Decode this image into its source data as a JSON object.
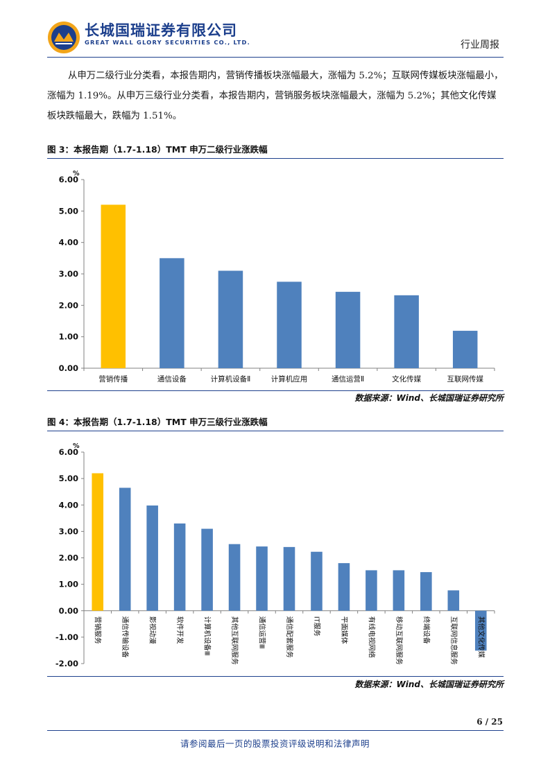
{
  "header": {
    "company_cn": "长城国瑞证券有限公司",
    "company_en": "GREAT WALL GLORY SECURITIES CO., LTD.",
    "report_type": "行业周报"
  },
  "intro_paragraph": "从申万二级行业分类看，本报告期内，营销传播板块涨幅最大，涨幅为 5.2%；互联网传媒板块涨幅最小，涨幅为 1.19%。从申万三级行业分类看，本报告期内，营销服务板块涨幅最大，涨幅为 5.2%；其他文化传媒板块跌幅最大，跌幅为 1.51%。",
  "figures": [
    {
      "title": "图 3：本报告期（1.7-1.18）TMT 申万二级行业涨跌幅",
      "source": "数据来源：Wind、长城国瑞证券研究所",
      "chart_data": {
        "type": "bar",
        "ylabel": "%",
        "ylim": [
          0,
          6
        ],
        "ytick_labels": [
          "0.00",
          "1.00",
          "2.00",
          "3.00",
          "4.00",
          "5.00",
          "6.00"
        ],
        "grid": false,
        "categories": [
          "营销传播",
          "通信设备",
          "计算机设备Ⅱ",
          "计算机应用",
          "通信运营Ⅱ",
          "文化传媒",
          "互联网传媒"
        ],
        "values": [
          5.2,
          3.5,
          3.1,
          2.75,
          2.43,
          2.32,
          1.19
        ],
        "highlight_index": 0,
        "colors": {
          "bar": "#4f81bd",
          "highlight": "#ffc000"
        }
      }
    },
    {
      "title": "图 4：本报告期（1.7-1.18）TMT 申万三级行业涨跌幅",
      "source": "数据来源：Wind、长城国瑞证券研究所",
      "chart_data": {
        "type": "bar",
        "ylabel": "%",
        "ylim": [
          -2,
          6
        ],
        "ytick_labels": [
          "-2.00",
          "-1.00",
          "0.00",
          "1.00",
          "2.00",
          "3.00",
          "4.00",
          "5.00",
          "6.00"
        ],
        "grid": false,
        "categories": [
          "营销服务",
          "通信传输设备",
          "影视动漫",
          "软件开发",
          "计算机设备Ⅲ",
          "其他互联网服务",
          "通信运营Ⅲ",
          "通信配套服务",
          "IT服务",
          "平面媒体",
          "有线电视网络",
          "移动互联网服务",
          "终端设备",
          "互联网信息服务",
          "其他文化传媒"
        ],
        "values": [
          5.2,
          4.65,
          3.98,
          3.3,
          3.1,
          2.52,
          2.43,
          2.41,
          2.23,
          1.8,
          1.53,
          1.53,
          1.46,
          0.77,
          -1.51
        ],
        "highlight_index": 0,
        "colors": {
          "bar": "#4f81bd",
          "highlight": "#ffc000"
        }
      }
    }
  ],
  "page_number": "6 / 25",
  "footer": "请参阅最后一页的股票投资评级说明和法律声明"
}
